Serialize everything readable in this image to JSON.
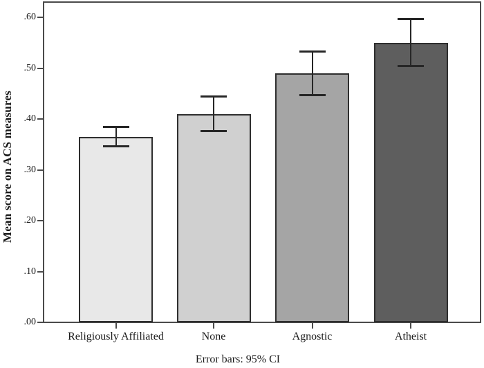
{
  "figure": {
    "background": "#ffffff",
    "text_color": "#1a1a1a"
  },
  "chart_data": {
    "type": "bar",
    "title": "",
    "xlabel": "",
    "ylabel": "Mean score on ACS measures",
    "caption": "Error bars: 95% CI",
    "categories": [
      "Religiously Affiliated",
      "None",
      "Agnostic",
      "Atheist"
    ],
    "values": [
      0.365,
      0.41,
      0.49,
      0.55
    ],
    "error_bars": {
      "kind": "95% CI",
      "low": [
        0.345,
        0.375,
        0.446,
        0.504
      ],
      "high": [
        0.385,
        0.445,
        0.534,
        0.597
      ]
    },
    "ylim": [
      0.0,
      0.6
    ],
    "yticks": {
      "values": [
        0.0,
        0.1,
        0.2,
        0.3,
        0.4,
        0.5,
        0.6
      ],
      "labels": [
        ".00",
        ".10",
        ".20",
        ".30",
        ".40",
        ".50",
        ".60"
      ]
    },
    "grid": false,
    "legend_position": "none",
    "bar_colors": [
      "#e8e8e8",
      "#d0d0d0",
      "#a5a5a5",
      "#5e5e5e"
    ],
    "bar_border_color": "#2e2e2e",
    "axis_color": "#4a4a4a",
    "error_bar_color": "#262626"
  }
}
